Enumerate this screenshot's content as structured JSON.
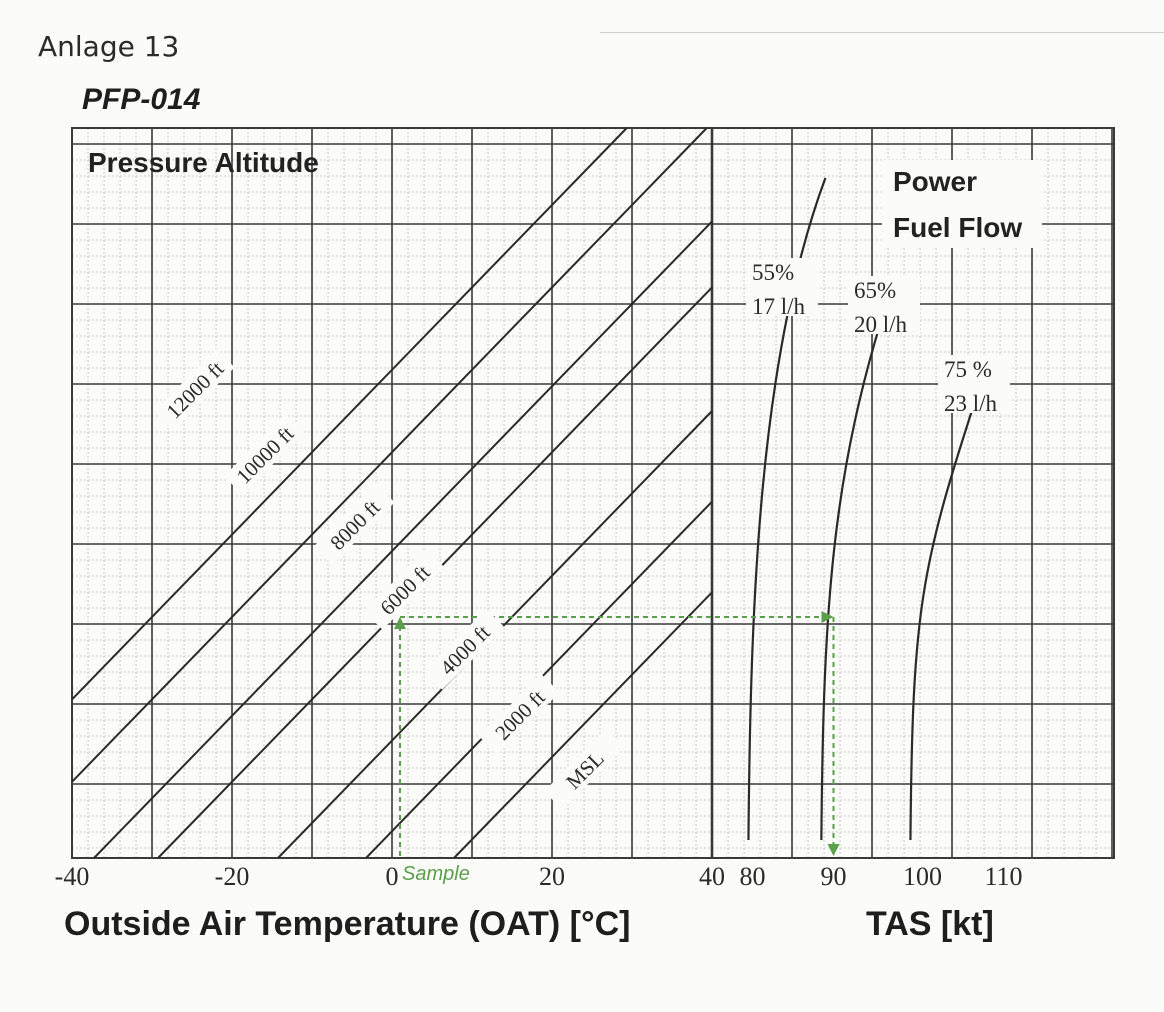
{
  "page": {
    "header": "Anlage 13",
    "document_code": "PFP-014"
  },
  "colors": {
    "grid_major": "#3a3a3a",
    "grid_minor": "#bdbdbd",
    "curve": "#2a2a2a",
    "sample": "#5aa04a"
  },
  "chart_data": {
    "type": "line",
    "left_panel": {
      "title": "Pressure Altitude",
      "xlabel": "Outside Air Temperature (OAT) [°C]",
      "xlim": [
        -40,
        40
      ],
      "x_ticks": [
        "-40",
        "-20",
        "0",
        "20",
        "40"
      ],
      "altitude_lines": [
        {
          "name": "MSL",
          "oat_at_sample_level": 37
        },
        {
          "name": "2000 ft",
          "oat_at_sample_level": 26
        },
        {
          "name": "4000 ft",
          "oat_at_sample_level": 15
        },
        {
          "name": "6000 ft",
          "oat_at_sample_level": 0
        },
        {
          "name": "8000 ft",
          "oat_at_sample_level": -8
        },
        {
          "name": "10000 ft",
          "oat_at_sample_level": -20
        },
        {
          "name": "12000 ft",
          "oat_at_sample_level": -30
        }
      ]
    },
    "right_panel": {
      "title_line1": "Power",
      "title_line2": "Fuel Flow",
      "xlabel": "TAS [kt]",
      "xlim": [
        75,
        115
      ],
      "x_ticks": [
        "80",
        "90",
        "100",
        "110"
      ],
      "series": [
        {
          "power": "55%",
          "fuel_flow": "17 l/h",
          "tas_at_bottom": 79.5,
          "tas_at_top": 89
        },
        {
          "power": "65%",
          "fuel_flow": "20 l/h",
          "tas_at_bottom": 88.5,
          "tas_at_top": 97
        },
        {
          "power": "75 %",
          "fuel_flow": "23 l/h",
          "tas_at_bottom": 99.5,
          "tas_at_top": 108
        }
      ]
    },
    "sample": {
      "label": "Sample",
      "oat": 0,
      "pressure_altitude": "6000 ft",
      "tas": 90
    },
    "grid": true
  }
}
